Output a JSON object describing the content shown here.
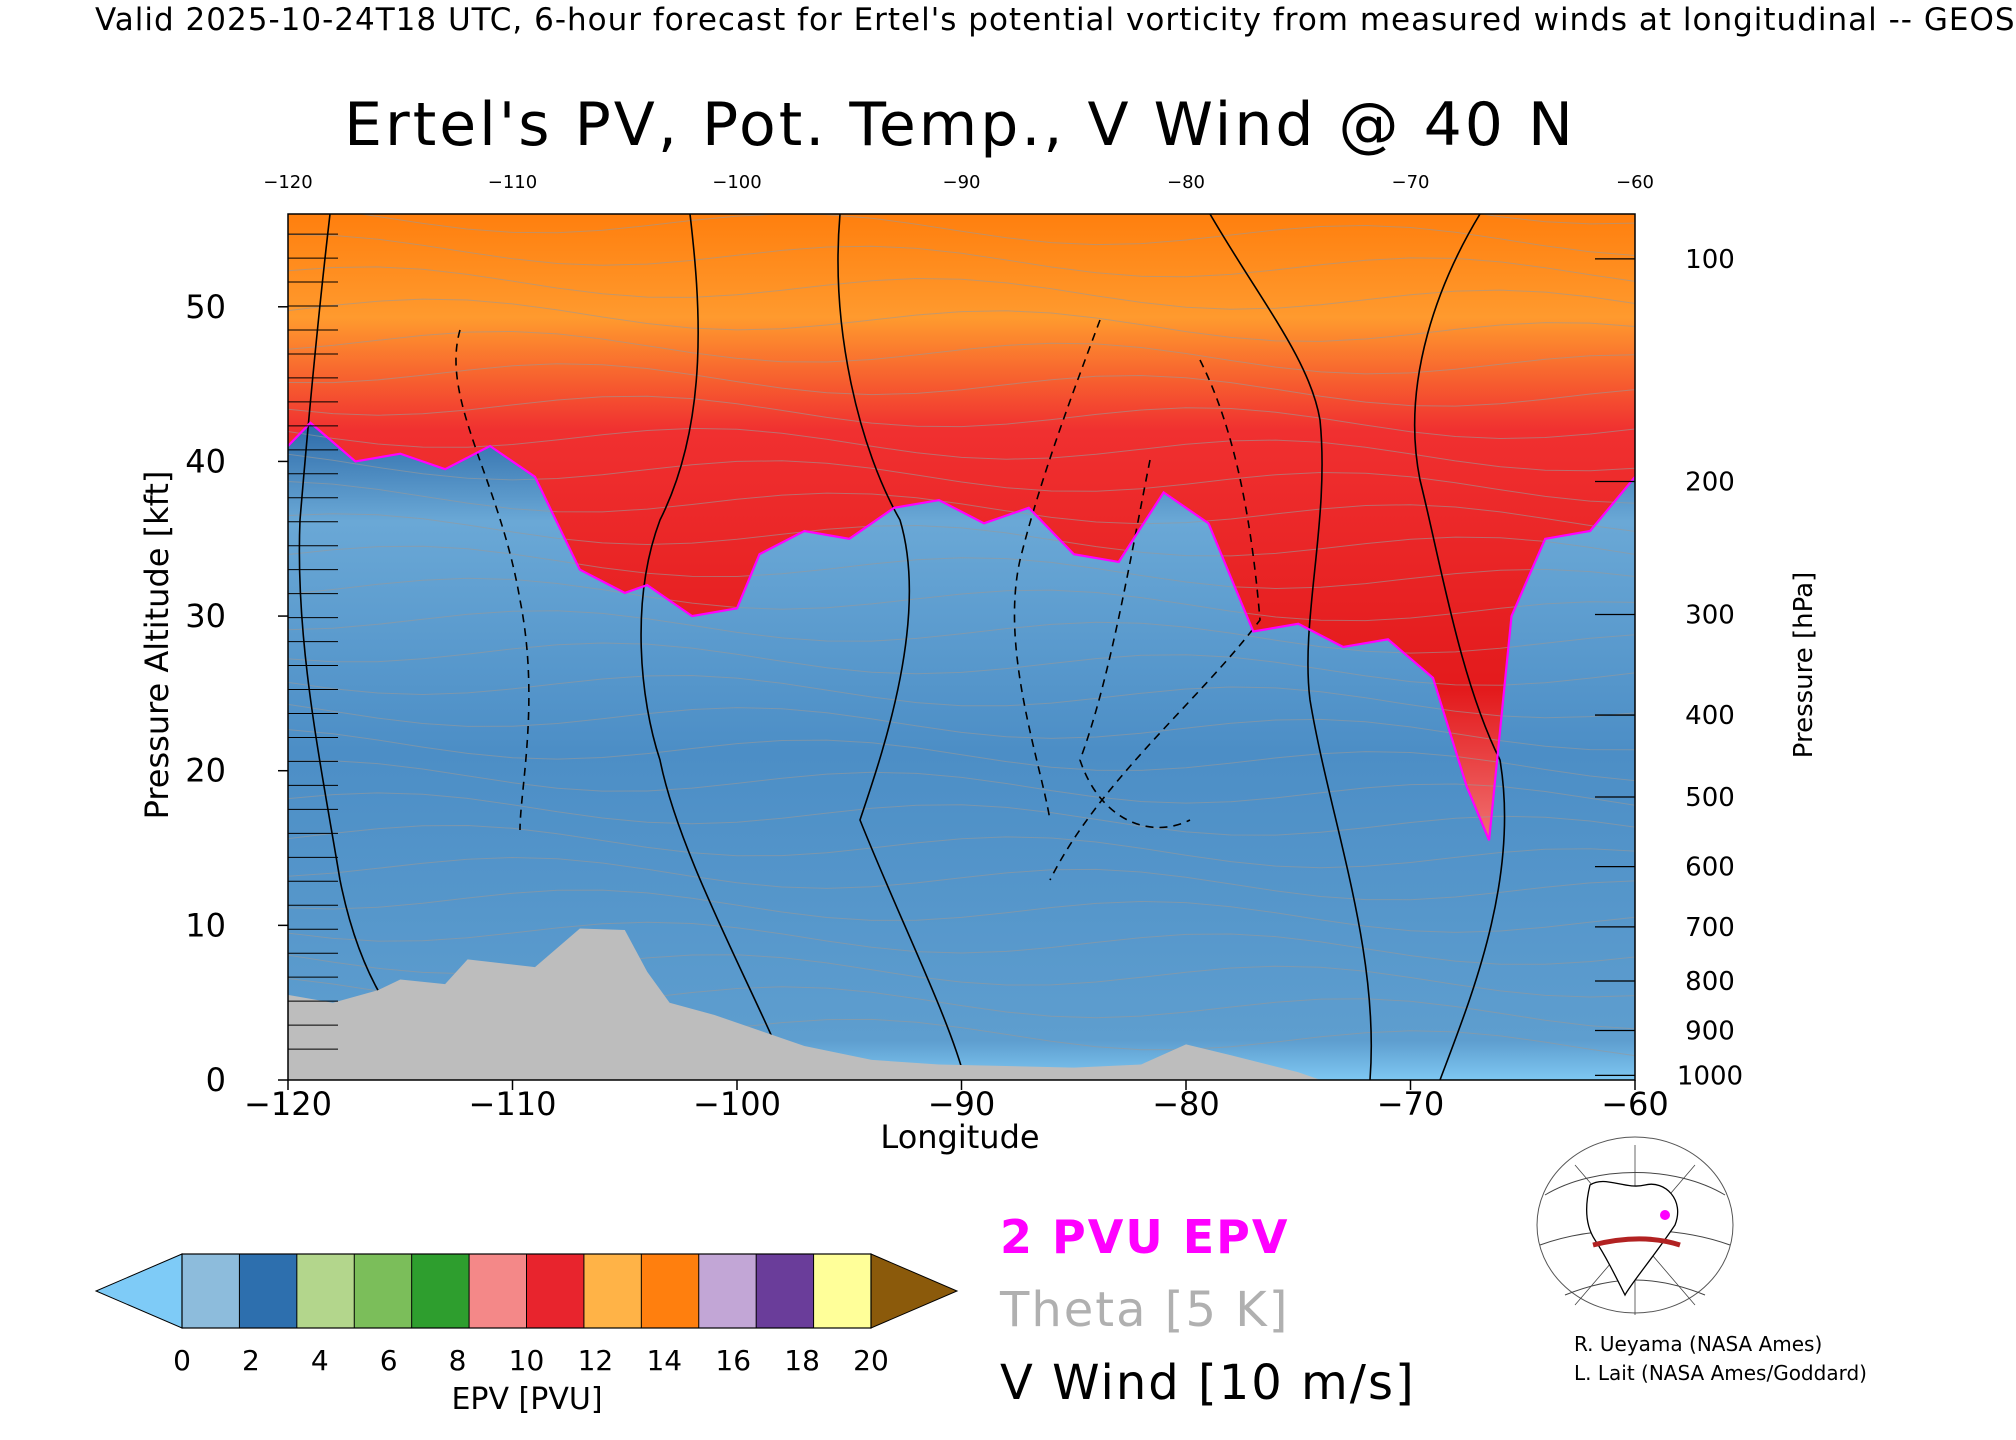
{
  "header": "Valid 2025-10-24T18 UTC, 6-hour forecast for Ertel's potential vorticity from measured winds at longitudinal -- GEOS",
  "chart_data": {
    "type": "heatmap",
    "title": "Ertel's PV, Pot. Temp., V Wind @ 40 N",
    "xlabel": "Longitude",
    "ylabel": "Pressure Altitude [kft]",
    "ylabel_right": "Pressure [hPa]",
    "xlim": [
      -120,
      -60
    ],
    "ylim": [
      0,
      56
    ],
    "x_ticks": [
      -120,
      -110,
      -100,
      -90,
      -80,
      -70,
      -60
    ],
    "x_tick_labels": [
      "−120",
      "−110",
      "−100",
      "−90",
      "−80",
      "−70",
      "−60"
    ],
    "top_tick_labels": [
      "−120",
      "−110",
      "−100",
      "−90",
      "−80",
      "−70",
      "−60"
    ],
    "y_ticks": [
      0,
      10,
      20,
      30,
      40,
      50
    ],
    "pressure_ticks": [
      {
        "hpa": 100,
        "kft": 53.1
      },
      {
        "hpa": 200,
        "kft": 38.7
      },
      {
        "hpa": 300,
        "kft": 30.1
      },
      {
        "hpa": 400,
        "kft": 23.6
      },
      {
        "hpa": 500,
        "kft": 18.3
      },
      {
        "hpa": 600,
        "kft": 13.8
      },
      {
        "hpa": 700,
        "kft": 9.9
      },
      {
        "hpa": 800,
        "kft": 6.4
      },
      {
        "hpa": 900,
        "kft": 3.2
      },
      {
        "hpa": 1000,
        "kft": 0.3
      }
    ],
    "tropopause_2pvu_kft": [
      {
        "lon": -120,
        "kft": 41
      },
      {
        "lon": -119,
        "kft": 42.5
      },
      {
        "lon": -117,
        "kft": 40
      },
      {
        "lon": -115,
        "kft": 40.5
      },
      {
        "lon": -113,
        "kft": 39.5
      },
      {
        "lon": -111,
        "kft": 41
      },
      {
        "lon": -109,
        "kft": 39
      },
      {
        "lon": -108,
        "kft": 36
      },
      {
        "lon": -107,
        "kft": 33
      },
      {
        "lon": -105,
        "kft": 31.5
      },
      {
        "lon": -104,
        "kft": 32
      },
      {
        "lon": -102,
        "kft": 30
      },
      {
        "lon": -100,
        "kft": 30.5
      },
      {
        "lon": -99,
        "kft": 34
      },
      {
        "lon": -97,
        "kft": 35.5
      },
      {
        "lon": -95,
        "kft": 35
      },
      {
        "lon": -93,
        "kft": 37
      },
      {
        "lon": -91,
        "kft": 37.5
      },
      {
        "lon": -89,
        "kft": 36
      },
      {
        "lon": -87,
        "kft": 37
      },
      {
        "lon": -85,
        "kft": 34
      },
      {
        "lon": -83,
        "kft": 33.5
      },
      {
        "lon": -81,
        "kft": 38
      },
      {
        "lon": -79,
        "kft": 36
      },
      {
        "lon": -77,
        "kft": 29
      },
      {
        "lon": -75,
        "kft": 29.5
      },
      {
        "lon": -73,
        "kft": 28
      },
      {
        "lon": -71,
        "kft": 28.5
      },
      {
        "lon": -69,
        "kft": 26
      },
      {
        "lon": -67.5,
        "kft": 19
      },
      {
        "lon": -66.5,
        "kft": 15.5
      },
      {
        "lon": -65.5,
        "kft": 30
      },
      {
        "lon": -64,
        "kft": 35
      },
      {
        "lon": -62,
        "kft": 35.5
      },
      {
        "lon": -60,
        "kft": 39
      }
    ],
    "terrain_kft": [
      {
        "lon": -120,
        "kft": 5.5
      },
      {
        "lon": -118,
        "kft": 5
      },
      {
        "lon": -116,
        "kft": 5.8
      },
      {
        "lon": -115,
        "kft": 6.5
      },
      {
        "lon": -113,
        "kft": 6.2
      },
      {
        "lon": -112,
        "kft": 7.8
      },
      {
        "lon": -109,
        "kft": 7.3
      },
      {
        "lon": -107,
        "kft": 9.8
      },
      {
        "lon": -105,
        "kft": 9.7
      },
      {
        "lon": -104,
        "kft": 7
      },
      {
        "lon": -103,
        "kft": 5
      },
      {
        "lon": -101,
        "kft": 4.2
      },
      {
        "lon": -99,
        "kft": 3.2
      },
      {
        "lon": -97,
        "kft": 2.2
      },
      {
        "lon": -94,
        "kft": 1.3
      },
      {
        "lon": -91,
        "kft": 1
      },
      {
        "lon": -85,
        "kft": 0.8
      },
      {
        "lon": -82,
        "kft": 1
      },
      {
        "lon": -80,
        "kft": 2.3
      },
      {
        "lon": -78,
        "kft": 1.6
      },
      {
        "lon": -75,
        "kft": 0.5
      },
      {
        "lon": -74,
        "kft": 0
      }
    ],
    "colorbar": {
      "label": "EPV [PVU]",
      "range": [
        0,
        20
      ],
      "tick_labels": [
        "0",
        "2",
        "4",
        "6",
        "8",
        "10",
        "12",
        "14",
        "16",
        "18",
        "20"
      ],
      "extend": "both",
      "colors": [
        "#7ecbf7",
        "#8dbcdc",
        "#2d6fae",
        "#b3d68c",
        "#7bbe5a",
        "#2e9e2e",
        "#f48888",
        "#e8242d",
        "#ffb347",
        "#ff7f0e",
        "#c2a6d6",
        "#6a3d9a",
        "#ffff99",
        "#8b5a0b"
      ]
    },
    "legend": [
      {
        "label": "2 PVU EPV",
        "color": "#ff00ff"
      },
      {
        "label": "Theta [5 K]",
        "color": "#b0b0b0"
      },
      {
        "label": "V Wind [10 m/s]",
        "color": "#000000"
      }
    ],
    "inset_map": "north-america-40N-section",
    "colors": {
      "terrain": "#bdbdbd",
      "tropopause": "#ff00ff",
      "section_line": "#b22222"
    }
  },
  "credits": [
    "R. Ueyama (NASA Ames)",
    "L. Lait (NASA Ames/Goddard)"
  ]
}
